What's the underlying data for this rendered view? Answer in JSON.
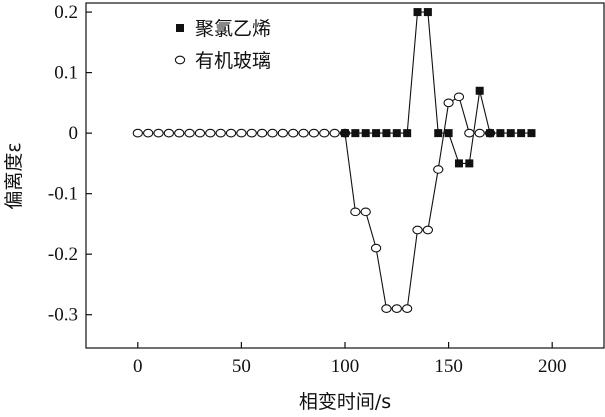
{
  "chart_data": {
    "type": "line",
    "xlabel": "相变时间/s",
    "ylabel": "偏离度ε",
    "xlim": [
      -25,
      225
    ],
    "ylim": [
      -0.355,
      0.215
    ],
    "xticks": [
      0,
      50,
      100,
      150,
      200
    ],
    "yticks": [
      -0.3,
      -0.2,
      -0.1,
      0,
      0.1,
      0.2
    ],
    "xtick_labels": [
      "0",
      "50",
      "100",
      "150",
      "200"
    ],
    "ytick_labels": [
      "-0.3",
      "-0.2",
      "-0.1",
      "0",
      "0.1",
      "0.2"
    ],
    "grid": false,
    "legend_position": "top-left",
    "series": [
      {
        "name": "聚氯乙烯",
        "marker": "filled-square",
        "color": "#111111",
        "x": [
          100,
          105,
          110,
          115,
          120,
          125,
          130,
          135,
          140,
          145,
          150,
          155,
          160,
          165,
          170,
          175,
          180,
          185,
          190
        ],
        "y": [
          0,
          0,
          0,
          0,
          0,
          0,
          0,
          0.2,
          0.2,
          0,
          0,
          -0.05,
          -0.05,
          0.07,
          0,
          0,
          0,
          0,
          0
        ]
      },
      {
        "name": "有机玻璃",
        "marker": "open-circle",
        "color": "#111111",
        "x": [
          0,
          5,
          10,
          15,
          20,
          25,
          30,
          35,
          40,
          45,
          50,
          55,
          60,
          65,
          70,
          75,
          80,
          85,
          90,
          95,
          100,
          105,
          110,
          115,
          120,
          125,
          130,
          135,
          140,
          145,
          150,
          155,
          160,
          165,
          170
        ],
        "y": [
          0,
          0,
          0,
          0,
          0,
          0,
          0,
          0,
          0,
          0,
          0,
          0,
          0,
          0,
          0,
          0,
          0,
          0,
          0,
          0,
          0,
          -0.13,
          -0.13,
          -0.19,
          -0.29,
          -0.29,
          -0.29,
          -0.16,
          -0.16,
          -0.06,
          0.05,
          0.06,
          0,
          0,
          0
        ]
      }
    ]
  }
}
